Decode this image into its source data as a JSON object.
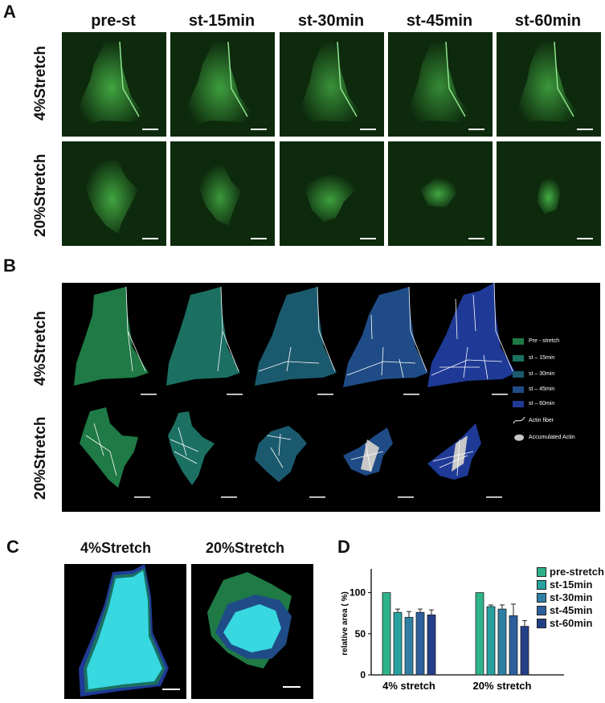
{
  "panels": {
    "a": "A",
    "b": "B",
    "c": "C",
    "d": "D"
  },
  "panel_a": {
    "columns": [
      "pre-st",
      "st-15min",
      "st-30min",
      "st-45min",
      "st-60min"
    ],
    "rows": [
      "4%Stretch",
      "20%Stretch"
    ]
  },
  "panel_b": {
    "rows": [
      "4%Stretch",
      "20%Stretch"
    ],
    "legend": [
      {
        "label": "Pre - stretch",
        "color": "#1f7a45"
      },
      {
        "label": "st – 15min",
        "color": "#1b7062"
      },
      {
        "label": "st – 30min",
        "color": "#1b5a6e"
      },
      {
        "label": "st – 45min",
        "color": "#1f4c86"
      },
      {
        "label": "st – 60min",
        "color": "#1f3a96"
      },
      {
        "label": "Actin fiber",
        "color": "#ffffff"
      },
      {
        "label": "Accumulated Actin",
        "color": "#c8c8c8"
      }
    ]
  },
  "panel_c": {
    "titles": [
      "4%Stretch",
      "20%Stretch"
    ]
  },
  "chart_data": {
    "type": "bar",
    "ylabel": "relative area ( %)",
    "ylim": [
      0,
      125
    ],
    "yticks": [
      "0",
      "50",
      "100"
    ],
    "categories": [
      "4% stretch",
      "20% stretch"
    ],
    "series": [
      {
        "name": "pre-stretch",
        "values": [
          100,
          100
        ],
        "errors": [
          0,
          0
        ],
        "color": "#2db38a"
      },
      {
        "name": "st-15min",
        "values": [
          76,
          83
        ],
        "errors": [
          4,
          2
        ],
        "color": "#27a0a0"
      },
      {
        "name": "st-30min",
        "values": [
          70,
          80
        ],
        "errors": [
          7,
          5
        ],
        "color": "#2f7fa3"
      },
      {
        "name": "st-45min",
        "values": [
          76,
          72
        ],
        "errors": [
          4,
          14
        ],
        "color": "#2c5f9c"
      },
      {
        "name": "st-60min",
        "values": [
          73,
          59
        ],
        "errors": [
          6,
          7
        ],
        "color": "#233f88"
      }
    ]
  }
}
